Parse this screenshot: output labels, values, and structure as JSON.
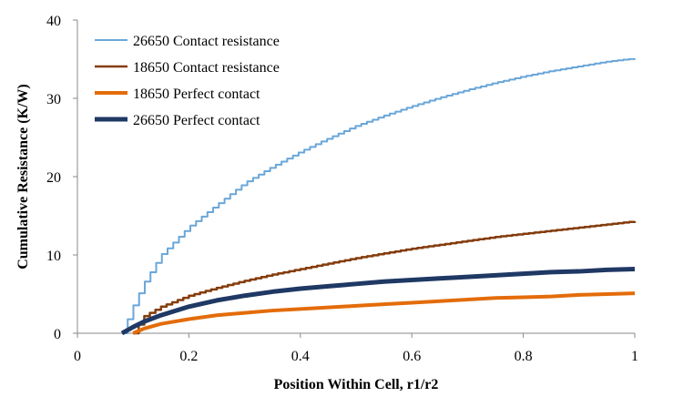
{
  "chart_data": {
    "type": "line",
    "xlabel": "Position Within Cell, r1/r2",
    "ylabel": "Cumulative Resistance (K/W)",
    "xlim": [
      0,
      1
    ],
    "ylim": [
      0,
      40
    ],
    "x_ticks": [
      "0",
      "0.2",
      "0.4",
      "0.6",
      "0.8",
      "1"
    ],
    "y_ticks": [
      "0",
      "10",
      "20",
      "30",
      "40"
    ],
    "grid": false,
    "legend_position": "top-left",
    "series": [
      {
        "name": "26650 Contact resistance",
        "color": "#6aa6d8",
        "width": 2,
        "stepped": true,
        "x": [
          0.08,
          0.1,
          0.12,
          0.15,
          0.2,
          0.25,
          0.3,
          0.35,
          0.4,
          0.45,
          0.5,
          0.55,
          0.6,
          0.65,
          0.7,
          0.75,
          0.8,
          0.85,
          0.9,
          0.95,
          1.0
        ],
        "y": [
          0,
          3.5,
          6.5,
          10,
          13.6,
          16.4,
          19.2,
          21.3,
          23.2,
          24.9,
          26.5,
          27.8,
          29.0,
          30.1,
          31.1,
          32.0,
          32.8,
          33.5,
          34.1,
          34.7,
          35.1
        ]
      },
      {
        "name": "18650 Contact resistance",
        "color": "#843c0c",
        "width": 2.5,
        "stepped": true,
        "x": [
          0.1,
          0.12,
          0.15,
          0.2,
          0.25,
          0.3,
          0.35,
          0.4,
          0.45,
          0.5,
          0.55,
          0.6,
          0.65,
          0.7,
          0.75,
          0.8,
          0.85,
          0.9,
          0.95,
          1.0
        ],
        "y": [
          0,
          2.2,
          3.4,
          4.8,
          5.8,
          6.7,
          7.5,
          8.2,
          8.9,
          9.6,
          10.2,
          10.8,
          11.3,
          11.8,
          12.3,
          12.7,
          13.1,
          13.5,
          13.9,
          14.3
        ]
      },
      {
        "name": "18650 Perfect contact",
        "color": "#e36c0a",
        "width": 4,
        "stepped": false,
        "x": [
          0.1,
          0.12,
          0.15,
          0.2,
          0.25,
          0.3,
          0.35,
          0.4,
          0.45,
          0.5,
          0.55,
          0.6,
          0.65,
          0.7,
          0.75,
          0.8,
          0.85,
          0.9,
          0.95,
          1.0
        ],
        "y": [
          0,
          0.6,
          1.2,
          1.8,
          2.3,
          2.6,
          2.9,
          3.1,
          3.3,
          3.5,
          3.7,
          3.9,
          4.1,
          4.3,
          4.5,
          4.6,
          4.7,
          4.9,
          5.0,
          5.1
        ]
      },
      {
        "name": "26650 Perfect contact",
        "color": "#1f3864",
        "width": 5,
        "stepped": false,
        "x": [
          0.08,
          0.1,
          0.12,
          0.15,
          0.2,
          0.25,
          0.3,
          0.35,
          0.4,
          0.45,
          0.5,
          0.55,
          0.6,
          0.65,
          0.7,
          0.75,
          0.8,
          0.85,
          0.9,
          0.95,
          1.0
        ],
        "y": [
          0,
          0.8,
          1.5,
          2.3,
          3.4,
          4.2,
          4.8,
          5.3,
          5.7,
          6.0,
          6.3,
          6.6,
          6.8,
          7.0,
          7.2,
          7.4,
          7.6,
          7.8,
          7.9,
          8.1,
          8.2
        ]
      }
    ]
  }
}
